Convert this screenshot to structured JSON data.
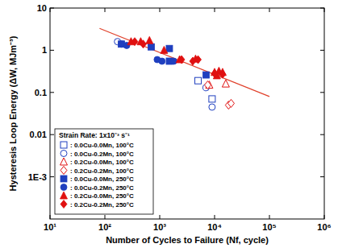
{
  "chart_data": {
    "type": "scatter",
    "x_label": "Number of Cycles to Failure (Nf, cycle)",
    "y_label": "Hysteresis Loop Energy (ΔW, MJm⁻³)",
    "log": true,
    "legend": "lower left",
    "legend_title": "Strain Rate: 1x10⁻³ s⁻¹",
    "xlim": [
      10,
      1000000
    ],
    "ylim": [
      0.0001,
      10
    ],
    "xticks": [
      {
        "value": 10,
        "label": "10¹"
      },
      {
        "value": 100,
        "label": "10²"
      },
      {
        "value": 1000,
        "label": "10³"
      },
      {
        "value": 10000,
        "label": "10⁴"
      },
      {
        "value": 100000,
        "label": "10⁵"
      },
      {
        "value": 1000000,
        "label": "10⁶"
      }
    ],
    "yticks": [
      {
        "value": 0.001,
        "label": "1E-3"
      },
      0.01,
      0.1,
      1,
      10
    ],
    "series": [
      {
        "name": ": 0.0Cu-0.0Mn, 100°C",
        "color": "#1f3fbf",
        "marker": "square-open",
        "x": [
          5000,
          9000
        ],
        "values": [
          0.19,
          0.07
        ]
      },
      {
        "name": ": 0.0Cu-0.2Mn, 100°C",
        "color": "#1f3fbf",
        "marker": "circle-open",
        "x": [
          170,
          7000,
          9000
        ],
        "values": [
          1.6,
          0.13,
          0.045
        ]
      },
      {
        "name": ": 0.2Cu-0.0Mn, 100°C",
        "color": "#e01010",
        "marker": "triangle-open",
        "x": [
          8000,
          16000
        ],
        "values": [
          0.15,
          0.16
        ]
      },
      {
        "name": ": 0.2Cu-0.2Mn, 100°C",
        "color": "#e01010",
        "marker": "diamond-open",
        "x": [
          7500,
          18000,
          20000
        ],
        "values": [
          0.15,
          0.05,
          0.055
        ]
      },
      {
        "name": ": 0.0Cu-0.0Mn, 250°C",
        "color": "#1f3fbf",
        "marker": "square",
        "x": [
          200,
          700,
          1500,
          1500,
          7000
        ],
        "values": [
          1.4,
          1.2,
          1.1,
          0.55,
          0.26
        ]
      },
      {
        "name": ": 0.0Cu-0.2Mn, 250°C",
        "color": "#1f3fbf",
        "marker": "circle",
        "x": [
          200,
          250,
          900,
          1100,
          1800
        ],
        "values": [
          1.4,
          1.3,
          0.6,
          0.55,
          0.55
        ]
      },
      {
        "name": ": 0.2Cu-0.0Mn, 250°C",
        "color": "#e01010",
        "marker": "triangle",
        "x": [
          300,
          450,
          650,
          1200,
          2300,
          4500,
          10000,
          12000,
          14000,
          11000
        ],
        "values": [
          1.6,
          1.6,
          1.7,
          1.0,
          0.6,
          0.62,
          0.3,
          0.32,
          0.3,
          0.25
        ]
      },
      {
        "name": ": 0.2Cu-0.2Mn, 250°C",
        "color": "#e01010",
        "marker": "diamond",
        "x": [
          350,
          500,
          2500,
          4000,
          5000,
          10000,
          14000
        ],
        "values": [
          1.6,
          1.4,
          0.6,
          0.55,
          0.6,
          0.28,
          0.27
        ]
      }
    ],
    "fit_line": {
      "color": "#e0402a",
      "x": [
        80,
        100000
      ],
      "values": [
        3.3,
        0.08
      ]
    }
  }
}
